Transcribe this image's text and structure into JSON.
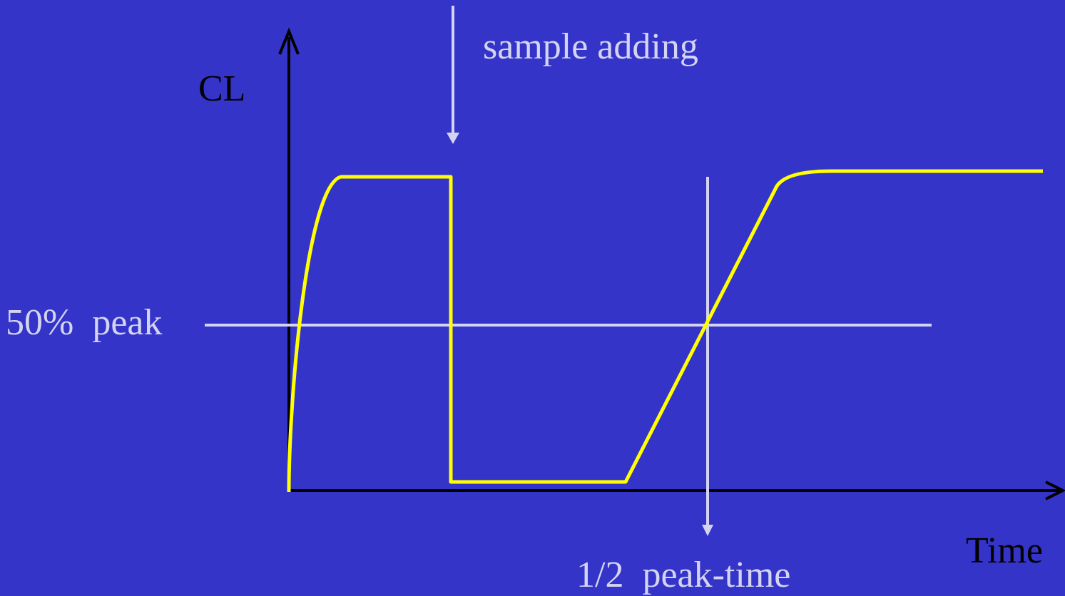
{
  "axes": {
    "y_label": "CL",
    "x_label": "Time"
  },
  "annotations": {
    "sample_adding": "sample adding",
    "half_peak": "50%  peak",
    "half_peak_time": "1/2  peak-time"
  }
}
